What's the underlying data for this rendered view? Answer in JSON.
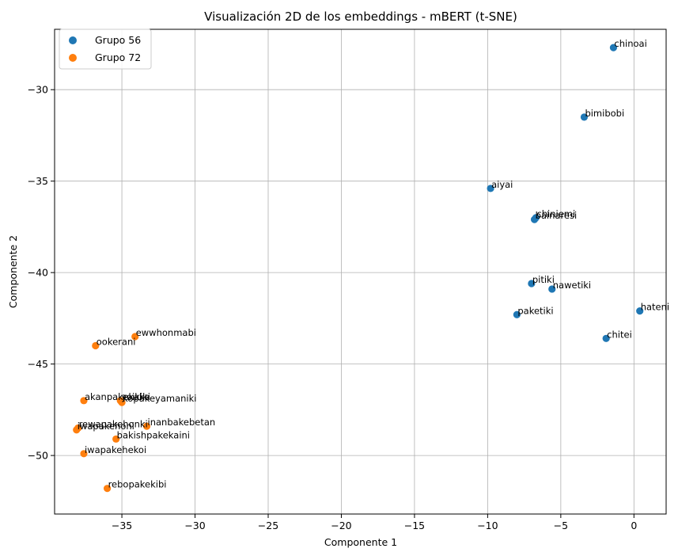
{
  "chart_data": {
    "type": "scatter",
    "title": "Visualización 2D de los embeddings - mBERT (t-SNE)",
    "xlabel": "Componente 1",
    "ylabel": "Componente 2",
    "xlim": [
      -39.6,
      2.2
    ],
    "ylim": [
      -53.2,
      -26.7
    ],
    "xticks": [
      -35,
      -30,
      -25,
      -20,
      -15,
      -10,
      -5,
      0
    ],
    "yticks": [
      -50,
      -45,
      -40,
      -35,
      -30
    ],
    "xtick_labels": [
      "−35",
      "−30",
      "−25",
      "−20",
      "−15",
      "−10",
      "−5",
      "0"
    ],
    "ytick_labels": [
      "−50",
      "−45",
      "−40",
      "−35",
      "−30"
    ],
    "grid": true,
    "legend_position": "top-left",
    "series": [
      {
        "name": "Grupo 56",
        "color": "#1f77b4",
        "points": [
          {
            "x": -1.4,
            "y": -27.7,
            "label": "chinoai"
          },
          {
            "x": -3.4,
            "y": -31.5,
            "label": "bimibobi"
          },
          {
            "x": -9.8,
            "y": -35.4,
            "label": "aiyai"
          },
          {
            "x": -6.8,
            "y": -37.1,
            "label": "bainaresi"
          },
          {
            "x": -6.7,
            "y": -37.0,
            "label": "chiniemi"
          },
          {
            "x": -7.0,
            "y": -40.6,
            "label": "pitiki"
          },
          {
            "x": -5.6,
            "y": -40.9,
            "label": "nawetiki"
          },
          {
            "x": 0.4,
            "y": -42.1,
            "label": "hateni"
          },
          {
            "x": -8.0,
            "y": -42.3,
            "label": "paketiki"
          },
          {
            "x": -1.9,
            "y": -43.6,
            "label": "chitei"
          }
        ]
      },
      {
        "name": "Grupo 72",
        "color": "#ff7f0e",
        "points": [
          {
            "x": -34.1,
            "y": -43.5,
            "label": "ewwhonmabi"
          },
          {
            "x": -36.8,
            "y": -44.0,
            "label": "ookerani"
          },
          {
            "x": -37.6,
            "y": -47.0,
            "label": "akanpakekaka"
          },
          {
            "x": -35.1,
            "y": -47.0,
            "label": "yoikiki"
          },
          {
            "x": -35.0,
            "y": -47.1,
            "label": "kopakeyamaniki"
          },
          {
            "x": -33.3,
            "y": -48.4,
            "label": "inanbakebetan"
          },
          {
            "x": -38.1,
            "y": -48.6,
            "label": "iwapakehoni"
          },
          {
            "x": -38.0,
            "y": -48.5,
            "label": "rewapakehonki"
          },
          {
            "x": -35.4,
            "y": -49.1,
            "label": "bakishpakekaini"
          },
          {
            "x": -37.6,
            "y": -49.9,
            "label": "iwapakehekoi"
          },
          {
            "x": -36.0,
            "y": -51.8,
            "label": "rebopakekibi"
          }
        ]
      }
    ]
  }
}
